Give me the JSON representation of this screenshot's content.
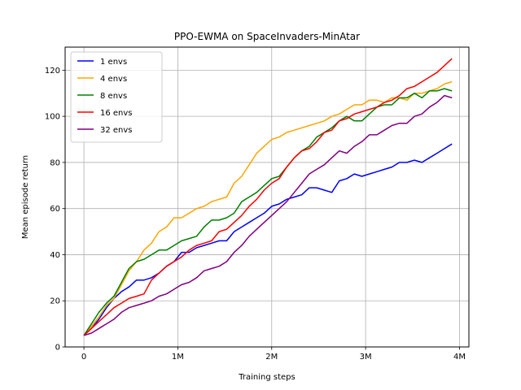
{
  "chart_data": {
    "type": "line",
    "title": "PPO-EWMA on SpaceInvaders-MinAtar",
    "xlabel": "Training steps",
    "ylabel": "Mean episode return",
    "xlim": [
      -200000,
      4100000
    ],
    "ylim": [
      0,
      130
    ],
    "grid": true,
    "legend_position": "top-left",
    "x_ticks": [
      {
        "value": 0,
        "label": "0"
      },
      {
        "value": 1000000,
        "label": "1M"
      },
      {
        "value": 2000000,
        "label": "2M"
      },
      {
        "value": 3000000,
        "label": "3M"
      },
      {
        "value": 4000000,
        "label": "4M"
      }
    ],
    "y_ticks": [
      {
        "value": 0,
        "label": "0"
      },
      {
        "value": 20,
        "label": "20"
      },
      {
        "value": 40,
        "label": "40"
      },
      {
        "value": 60,
        "label": "60"
      },
      {
        "value": 80,
        "label": "80"
      },
      {
        "value": 100,
        "label": "100"
      },
      {
        "value": 120,
        "label": "120"
      }
    ],
    "x": [
      0,
      80000,
      160000,
      240000,
      320000,
      400000,
      480000,
      560000,
      640000,
      720000,
      800000,
      880000,
      960000,
      1040000,
      1120000,
      1200000,
      1280000,
      1360000,
      1440000,
      1520000,
      1600000,
      1680000,
      1760000,
      1840000,
      1920000,
      2000000,
      2080000,
      2160000,
      2240000,
      2320000,
      2400000,
      2480000,
      2560000,
      2640000,
      2720000,
      2800000,
      2880000,
      2960000,
      3040000,
      3120000,
      3200000,
      3280000,
      3360000,
      3440000,
      3520000,
      3600000,
      3680000,
      3760000,
      3840000,
      3920000
    ],
    "series": [
      {
        "name": "1 envs",
        "color": "#0000ff",
        "values": [
          5,
          8,
          12,
          17,
          21,
          24,
          26,
          29,
          29,
          30,
          32,
          35,
          37,
          41,
          41,
          43,
          44,
          45,
          46,
          46,
          50,
          52,
          54,
          56,
          58,
          61,
          62,
          64,
          65,
          66,
          69,
          69,
          68,
          67,
          72,
          73,
          75,
          74,
          75,
          76,
          77,
          78,
          80,
          80,
          81,
          80,
          82,
          84,
          86,
          88
        ]
      },
      {
        "name": "4 envs",
        "color": "#ffa500",
        "values": [
          5,
          9,
          13,
          18,
          21,
          27,
          33,
          37,
          42,
          45,
          50,
          52,
          56,
          56,
          58,
          60,
          61,
          63,
          64,
          65,
          71,
          74,
          79,
          84,
          87,
          90,
          91,
          93,
          94,
          95,
          96,
          97,
          98,
          100,
          101,
          103,
          105,
          105,
          107,
          107,
          106,
          108,
          108,
          107,
          110,
          110,
          111,
          112,
          114,
          115
        ]
      },
      {
        "name": "8 envs",
        "color": "#008000",
        "values": [
          5,
          10,
          15,
          19,
          22,
          28,
          34,
          37,
          38,
          40,
          42,
          42,
          44,
          46,
          47,
          48,
          52,
          55,
          55,
          56,
          58,
          63,
          65,
          67,
          70,
          73,
          74,
          78,
          82,
          85,
          87,
          91,
          93,
          95,
          98,
          100,
          98,
          98,
          101,
          104,
          105,
          105,
          108,
          108,
          110,
          108,
          111,
          111,
          112,
          111
        ]
      },
      {
        "name": "16 envs",
        "color": "#ff0000",
        "values": [
          5,
          8,
          11,
          14,
          17,
          19,
          21,
          22,
          23,
          29,
          32,
          35,
          37,
          39,
          42,
          44,
          45,
          46,
          50,
          51,
          54,
          57,
          61,
          64,
          68,
          71,
          73,
          78,
          82,
          85,
          86,
          89,
          93,
          94,
          98,
          99,
          101,
          102,
          103,
          104,
          106,
          107,
          109,
          112,
          113,
          115,
          117,
          119,
          122,
          125
        ]
      },
      {
        "name": "32 envs",
        "color": "#800080",
        "values": [
          5,
          6,
          8,
          10,
          12,
          15,
          17,
          18,
          19,
          20,
          22,
          23,
          25,
          27,
          28,
          30,
          33,
          34,
          35,
          37,
          41,
          44,
          48,
          51,
          54,
          57,
          60,
          63,
          67,
          71,
          75,
          77,
          79,
          82,
          85,
          84,
          87,
          89,
          92,
          92,
          94,
          96,
          97,
          97,
          100,
          101,
          104,
          106,
          109,
          108
        ]
      }
    ]
  }
}
